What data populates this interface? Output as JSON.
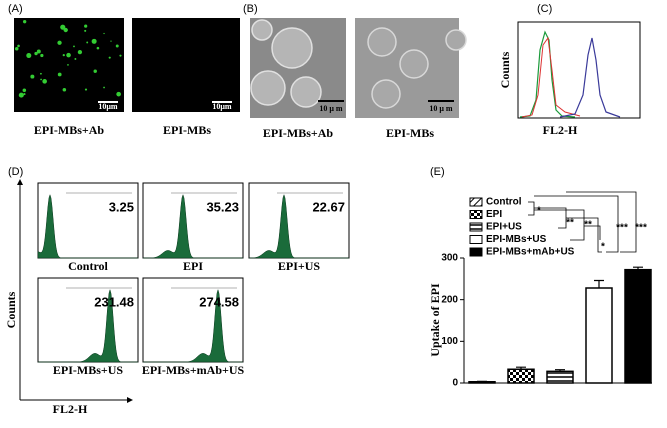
{
  "panels": {
    "a": {
      "label": "(A)",
      "scale_bars": [
        "10μm",
        "10μm"
      ],
      "captions": [
        "EPI-MBs+Ab",
        "EPI-MBs"
      ]
    },
    "b": {
      "label": "(B)",
      "scale_bars": [
        "10 μ m",
        "10 μ m"
      ],
      "captions": [
        "EPI-MBs+Ab",
        "EPI-MBs"
      ]
    },
    "c": {
      "label": "(C)",
      "y_label": "Counts",
      "x_label": "FL2-H"
    },
    "d": {
      "label": "(D)",
      "y_label": "Counts",
      "x_label": "FL2-H",
      "plots": [
        {
          "caption": "Control",
          "value": 3.25
        },
        {
          "caption": "EPI",
          "value": 35.23
        },
        {
          "caption": "EPI+US",
          "value": 22.67
        },
        {
          "caption": "EPI-MBs+US",
          "value": 231.48
        },
        {
          "caption": "EPI-MBs+mAb+US",
          "value": 274.58
        }
      ]
    },
    "e": {
      "label": "(E)"
    }
  },
  "chart_data": {
    "type": "bar",
    "y_label": "Uptake of EPI",
    "categories": [
      "Control",
      "EPI",
      "EPI+US",
      "EPI-MBs+US",
      "EPI-MBs+mAb+US"
    ],
    "values": [
      3,
      33,
      28,
      228,
      272
    ],
    "errors": [
      1,
      5,
      4,
      18,
      6
    ],
    "patterns": [
      "hatch",
      "check",
      "lines",
      "white",
      "black"
    ],
    "ylim": [
      0,
      300
    ],
    "yticks": [
      0,
      100,
      200,
      300
    ],
    "annotations": [
      "*",
      "**",
      "**",
      "*",
      "***",
      "***"
    ]
  }
}
